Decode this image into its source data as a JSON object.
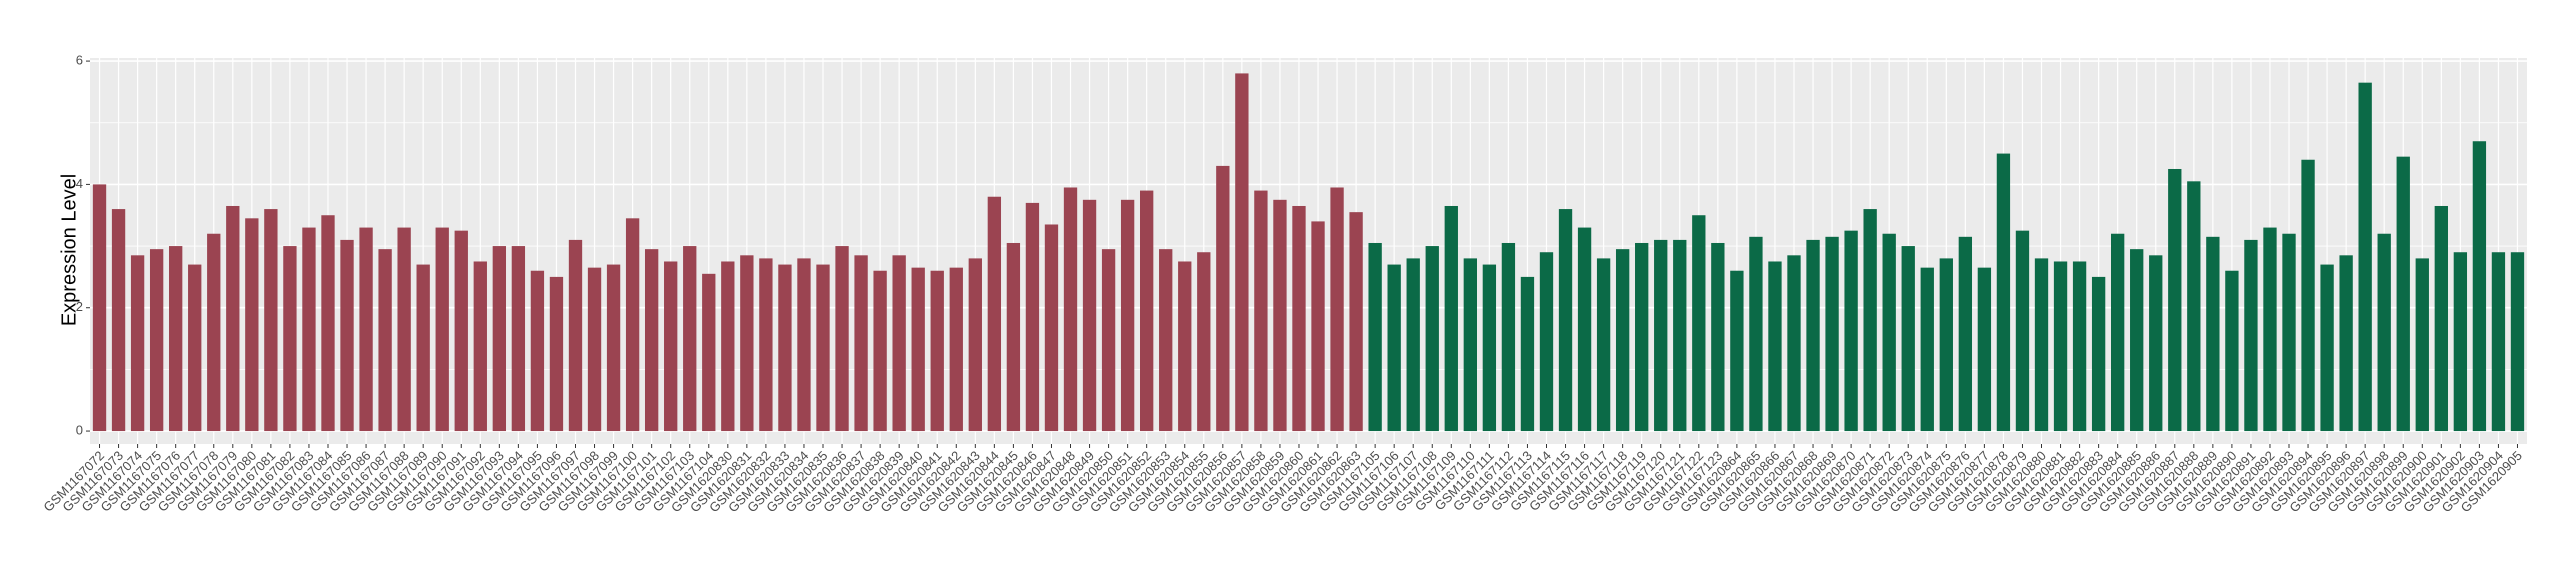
{
  "chart_data": {
    "type": "bar",
    "y_label": "Expression Level",
    "ylim": [
      -0.21,
      6.05
    ],
    "yticks": [
      0,
      2,
      4,
      6
    ],
    "grid": true,
    "series": [
      {
        "color": "#9b4451",
        "categories": [
          "GSM1167072",
          "GSM1167073",
          "GSM1167074",
          "GSM1167075",
          "GSM1167076",
          "GSM1167077",
          "GSM1167078",
          "GSM1167079",
          "GSM1167080",
          "GSM1167081",
          "GSM1167082",
          "GSM1167083",
          "GSM1167084",
          "GSM1167085",
          "GSM1167086",
          "GSM1167087",
          "GSM1167088",
          "GSM1167089",
          "GSM1167090",
          "GSM1167091",
          "GSM1167092",
          "GSM1167093",
          "GSM1167094",
          "GSM1167095",
          "GSM1167096",
          "GSM1167097",
          "GSM1167098",
          "GSM1167099",
          "GSM1167100",
          "GSM1167101",
          "GSM1167102",
          "GSM1167103",
          "GSM1167104",
          "GSM1620830",
          "GSM1620831",
          "GSM1620832",
          "GSM1620833",
          "GSM1620834",
          "GSM1620835",
          "GSM1620836",
          "GSM1620837",
          "GSM1620838",
          "GSM1620839",
          "GSM1620840",
          "GSM1620841",
          "GSM1620842",
          "GSM1620843",
          "GSM1620844",
          "GSM1620845",
          "GSM1620846",
          "GSM1620847",
          "GSM1620848",
          "GSM1620849",
          "GSM1620850",
          "GSM1620851",
          "GSM1620852",
          "GSM1620853",
          "GSM1620854",
          "GSM1620855",
          "GSM1620856",
          "GSM1620857",
          "GSM1620858",
          "GSM1620859",
          "GSM1620860",
          "GSM1620861",
          "GSM1620862",
          "GSM1620863"
        ],
        "values": [
          4.0,
          3.6,
          2.85,
          2.95,
          3.0,
          2.7,
          3.2,
          3.65,
          3.45,
          3.6,
          3.0,
          3.3,
          3.5,
          3.1,
          3.3,
          2.95,
          3.3,
          2.7,
          3.3,
          3.25,
          2.75,
          3.0,
          3.0,
          2.6,
          2.5,
          3.1,
          2.65,
          2.7,
          3.45,
          2.95,
          2.75,
          3.0,
          2.55,
          2.75,
          2.85,
          2.8,
          2.7,
          2.8,
          2.7,
          3.0,
          2.85,
          2.6,
          2.85,
          2.65,
          2.6,
          2.65,
          2.8,
          3.8,
          3.05,
          3.7,
          3.35,
          3.95,
          3.75,
          2.95,
          3.75,
          3.9,
          2.95,
          2.75,
          2.9,
          4.3,
          5.8,
          3.9,
          3.75,
          3.65,
          3.4,
          3.95,
          3.55
        ]
      },
      {
        "color": "#0b6a47",
        "categories": [
          "GSM1167105",
          "GSM1167106",
          "GSM1167107",
          "GSM1167108",
          "GSM1167109",
          "GSM1167110",
          "GSM1167111",
          "GSM1167112",
          "GSM1167113",
          "GSM1167114",
          "GSM1167115",
          "GSM1167116",
          "GSM1167117",
          "GSM1167118",
          "GSM1167119",
          "GSM1167120",
          "GSM1167121",
          "GSM1167122",
          "GSM1167123",
          "GSM1620864",
          "GSM1620865",
          "GSM1620866",
          "GSM1620867",
          "GSM1620868",
          "GSM1620869",
          "GSM1620870",
          "GSM1620871",
          "GSM1620872",
          "GSM1620873",
          "GSM1620874",
          "GSM1620875",
          "GSM1620876",
          "GSM1620877",
          "GSM1620878",
          "GSM1620879",
          "GSM1620880",
          "GSM1620881",
          "GSM1620882",
          "GSM1620883",
          "GSM1620884",
          "GSM1620885",
          "GSM1620886",
          "GSM1620887",
          "GSM1620888",
          "GSM1620889",
          "GSM1620890",
          "GSM1620891",
          "GSM1620892",
          "GSM1620893",
          "GSM1620894",
          "GSM1620895",
          "GSM1620896",
          "GSM1620897",
          "GSM1620898",
          "GSM1620899",
          "GSM1620900",
          "GSM1620901",
          "GSM1620902",
          "GSM1620903",
          "GSM1620904",
          "GSM1620905"
        ],
        "values": [
          3.05,
          2.7,
          2.8,
          3.0,
          3.65,
          2.8,
          2.7,
          3.05,
          2.5,
          2.9,
          3.6,
          3.3,
          2.8,
          2.95,
          3.05,
          3.1,
          3.1,
          3.5,
          3.05,
          2.6,
          3.15,
          2.75,
          2.85,
          3.1,
          3.15,
          3.25,
          3.6,
          3.2,
          3.0,
          2.65,
          2.8,
          3.15,
          2.65,
          4.5,
          3.25,
          2.8,
          2.75,
          2.75,
          2.5,
          3.2,
          2.95,
          2.85,
          4.25,
          4.05,
          3.15,
          2.6,
          3.1,
          3.3,
          3.2,
          4.4,
          2.7,
          2.85,
          5.65,
          3.2,
          4.45,
          2.8,
          3.65,
          2.9,
          4.7,
          2.9,
          2.9
        ]
      }
    ]
  }
}
